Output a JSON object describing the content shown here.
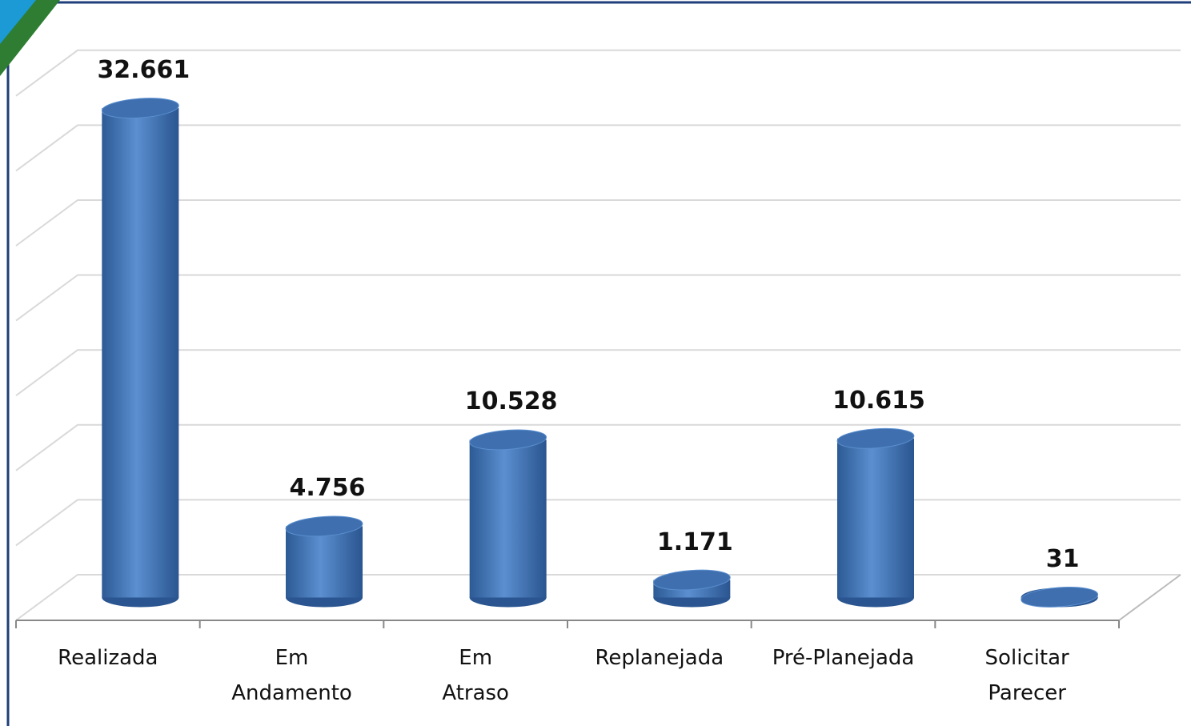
{
  "chart_data": {
    "type": "bar",
    "categories": [
      "Realizada",
      "Em Andamento",
      "Em Atraso",
      "Replanejada",
      "Pré-Planejada",
      "Solicitar Parecer"
    ],
    "values": [
      32661,
      4756,
      10528,
      1171,
      10615,
      31
    ],
    "value_labels": [
      "32.661",
      "4.756",
      "10.528",
      "1.171",
      "10.615",
      "31"
    ],
    "color": "#4f81bd",
    "ylim": [
      0,
      35000
    ],
    "yticks": [
      0,
      5000,
      10000,
      15000,
      20000,
      25000,
      30000,
      35000
    ],
    "grid": true
  }
}
